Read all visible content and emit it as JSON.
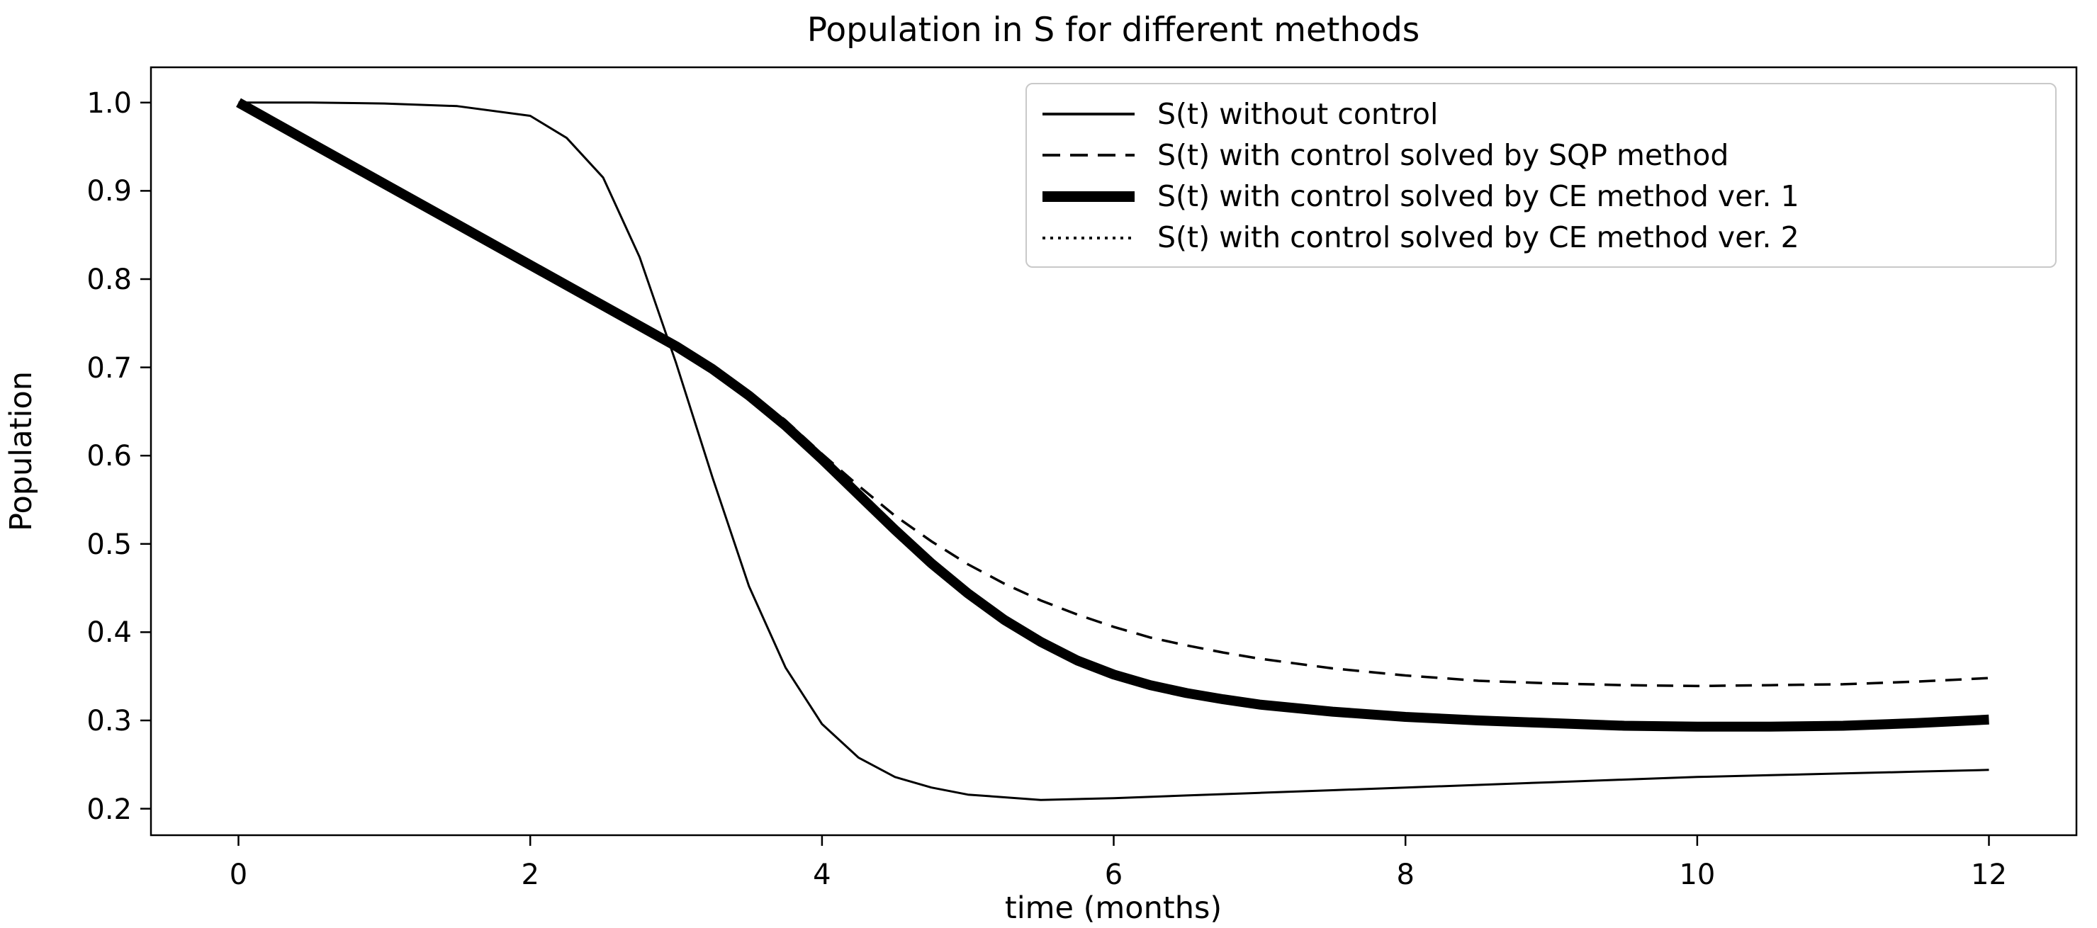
{
  "title": "Population in S for different methods",
  "axes": {
    "x_label": "time (months)",
    "y_label": "Population"
  },
  "chart_data": {
    "type": "line",
    "title": "Population in S for different methods",
    "xlabel": "time (months)",
    "ylabel": "Population",
    "xlim": [
      -0.6,
      12.6
    ],
    "ylim": [
      0.17,
      1.04
    ],
    "grid": false,
    "legend_position": "upper right",
    "xticks": [
      0,
      2,
      4,
      6,
      8,
      10,
      12
    ],
    "xticklabels": [
      "0",
      "2",
      "4",
      "6",
      "8",
      "10",
      "12"
    ],
    "yticks": [
      1.0,
      0.9,
      0.8,
      0.7,
      0.6,
      0.5,
      0.4,
      0.3,
      0.2
    ],
    "yticklabels": [
      "1.0",
      "0.9",
      "0.8",
      "0.7",
      "0.6",
      "0.5",
      "0.4",
      "0.3",
      "0.2"
    ],
    "series": [
      {
        "id": "without-control",
        "label": "S(t) without control",
        "style": "solid",
        "color": "#000000",
        "width": 3,
        "dash": null,
        "x": [
          0,
          0.5,
          1,
          1.5,
          2,
          2.25,
          2.5,
          2.75,
          3,
          3.25,
          3.5,
          3.75,
          4,
          4.25,
          4.5,
          4.75,
          5,
          5.5,
          6,
          6.5,
          7,
          7.5,
          8,
          8.5,
          9,
          9.5,
          10,
          10.5,
          11,
          11.5,
          12
        ],
        "y": [
          1.0,
          1.0,
          0.999,
          0.996,
          0.985,
          0.96,
          0.915,
          0.825,
          0.705,
          0.575,
          0.452,
          0.36,
          0.296,
          0.258,
          0.236,
          0.224,
          0.216,
          0.21,
          0.212,
          0.215,
          0.218,
          0.221,
          0.224,
          0.227,
          0.23,
          0.233,
          0.236,
          0.238,
          0.24,
          0.242,
          0.244
        ]
      },
      {
        "id": "sqp-method",
        "label": "S(t) with control solved by SQP method",
        "style": "dashed",
        "color": "#000000",
        "width": 3.5,
        "dash": "23 14",
        "x": [
          0,
          0.5,
          1,
          1.5,
          2,
          2.5,
          3,
          3.25,
          3.5,
          3.75,
          4,
          4.25,
          4.5,
          4.75,
          5,
          5.25,
          5.5,
          5.75,
          6,
          6.25,
          6.5,
          6.75,
          7,
          7.5,
          8,
          8.5,
          9,
          9.5,
          10,
          10.5,
          11,
          11.5,
          12
        ],
        "y": [
          1.0,
          0.954,
          0.908,
          0.862,
          0.816,
          0.77,
          0.725,
          0.7,
          0.672,
          0.64,
          0.602,
          0.566,
          0.532,
          0.503,
          0.477,
          0.455,
          0.436,
          0.42,
          0.406,
          0.394,
          0.385,
          0.377,
          0.37,
          0.359,
          0.351,
          0.345,
          0.342,
          0.34,
          0.339,
          0.34,
          0.341,
          0.344,
          0.348
        ]
      },
      {
        "id": "ce-method-v1",
        "label": "S(t) with control solved by CE method ver. 1",
        "style": "solid",
        "color": "#000000",
        "width": 14,
        "dash": null,
        "x": [
          0,
          0.5,
          1,
          1.5,
          2,
          2.5,
          3,
          3.25,
          3.5,
          3.75,
          4,
          4.25,
          4.5,
          4.75,
          5,
          5.25,
          5.5,
          5.75,
          6,
          6.25,
          6.5,
          6.75,
          7,
          7.5,
          8,
          8.5,
          9,
          9.5,
          10,
          10.5,
          11,
          11.5,
          12
        ],
        "y": [
          1.0,
          0.954,
          0.908,
          0.862,
          0.816,
          0.77,
          0.724,
          0.698,
          0.668,
          0.634,
          0.596,
          0.556,
          0.516,
          0.478,
          0.444,
          0.414,
          0.389,
          0.368,
          0.352,
          0.34,
          0.331,
          0.324,
          0.318,
          0.31,
          0.304,
          0.3,
          0.297,
          0.294,
          0.293,
          0.293,
          0.294,
          0.297,
          0.301
        ]
      },
      {
        "id": "ce-method-v2",
        "label": "S(t) with control solved by CE method ver. 2",
        "style": "dotted",
        "color": "#000000",
        "width": 3.2,
        "dash": "4 8",
        "x": [
          0,
          0.5,
          1,
          1.5,
          2,
          2.5,
          3,
          3.25,
          3.5,
          3.75,
          4,
          4.25,
          4.5,
          4.75,
          5,
          5.25,
          5.5,
          5.75,
          6,
          6.25,
          6.5,
          6.75,
          7,
          7.5,
          8,
          8.5,
          9,
          9.5,
          10,
          10.5,
          11,
          11.5,
          12
        ],
        "y": [
          1.0,
          0.956,
          0.91,
          0.864,
          0.818,
          0.772,
          0.726,
          0.7,
          0.67,
          0.636,
          0.598,
          0.558,
          0.518,
          0.48,
          0.446,
          0.416,
          0.391,
          0.37,
          0.354,
          0.342,
          0.333,
          0.326,
          0.32,
          0.312,
          0.306,
          0.302,
          0.299,
          0.296,
          0.295,
          0.295,
          0.296,
          0.299,
          0.303
        ]
      }
    ]
  }
}
